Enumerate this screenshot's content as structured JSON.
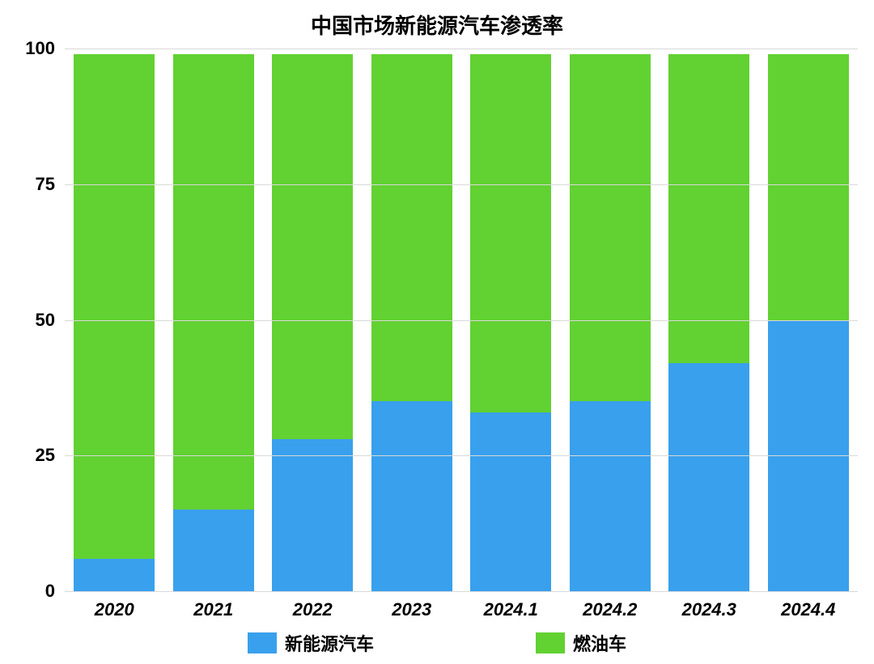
{
  "chart": {
    "type": "stacked-bar",
    "title": "中国市场新能源汽车渗透率",
    "title_fontsize": 26,
    "categories": [
      "2020",
      "2021",
      "2022",
      "2023",
      "2024.1",
      "2024.2",
      "2024.3",
      "2024.4"
    ],
    "series": [
      {
        "name": "新能源汽车",
        "color": "#39a0ed",
        "values": [
          6,
          15,
          28,
          35,
          33,
          35,
          42,
          50
        ]
      },
      {
        "name": "燃油车",
        "color": "#62d132",
        "values": [
          93,
          84,
          71,
          64,
          66,
          64,
          57,
          49
        ]
      }
    ],
    "ylim": [
      0,
      100
    ],
    "yticks": [
      0,
      25,
      50,
      75,
      100
    ],
    "ytick_fontsize": 22,
    "xtick_fontsize": 22,
    "xtick_font_style": "italic",
    "bar_width_ratio": 0.82,
    "background_color": "#ffffff",
    "grid_color": "#d9d9d9",
    "legend": {
      "position": "bottom",
      "fontsize": 22,
      "items": [
        {
          "label": "新能源汽车",
          "color": "#39a0ed"
        },
        {
          "label": "燃油车",
          "color": "#62d132"
        }
      ]
    }
  }
}
